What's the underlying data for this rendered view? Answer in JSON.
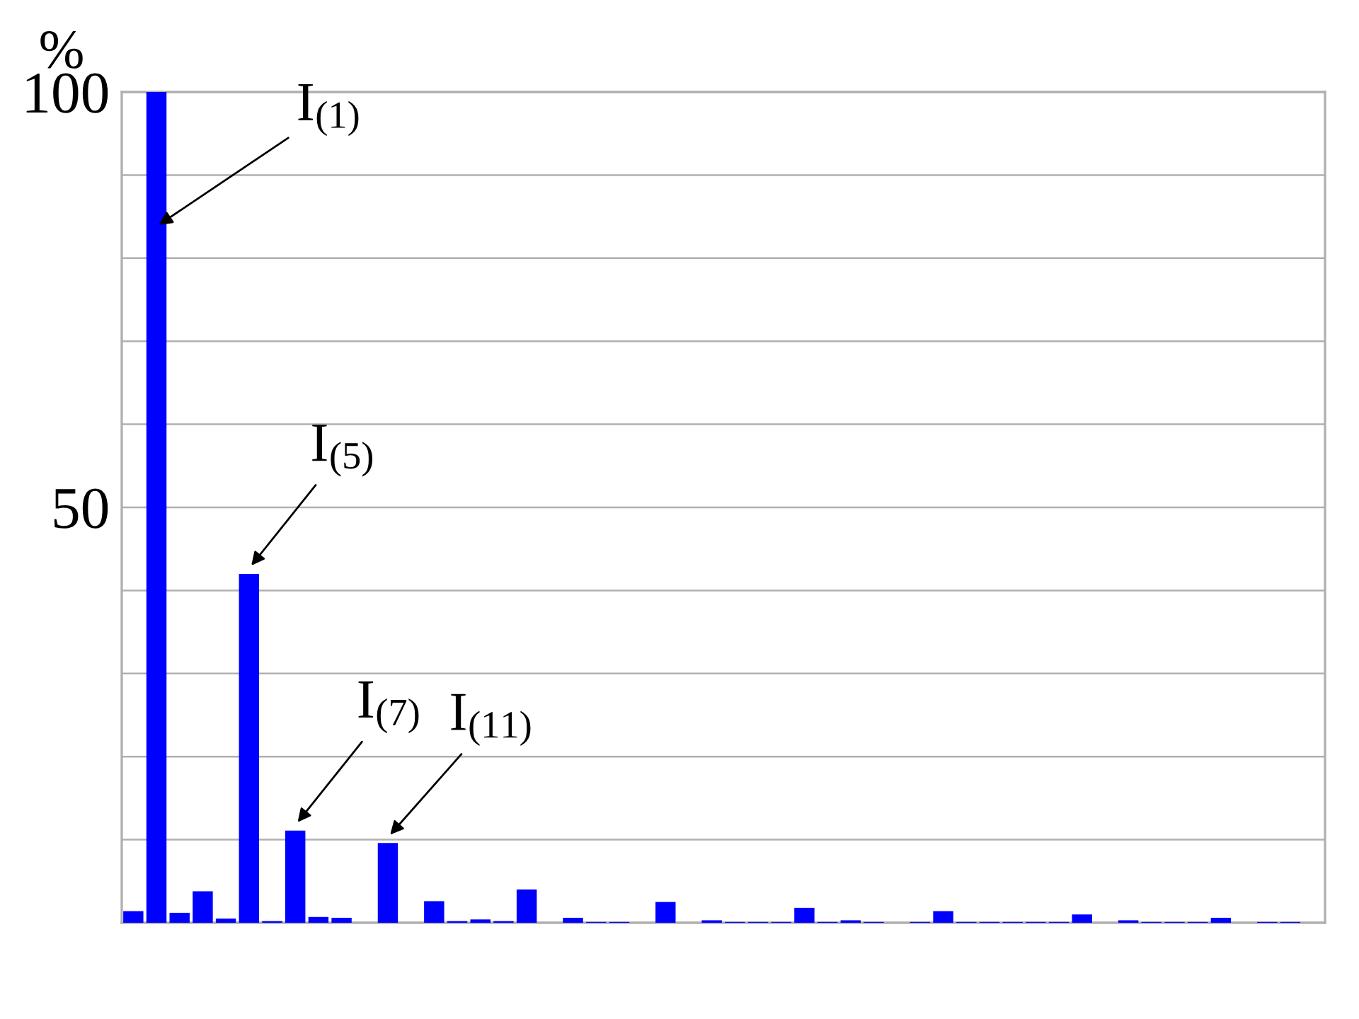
{
  "chart_data": {
    "type": "bar",
    "ylabel": "%",
    "categories": [
      null,
      null,
      null,
      null,
      null,
      null,
      null,
      null,
      null,
      null,
      null,
      null,
      null,
      null,
      null,
      null,
      null,
      null,
      null,
      null,
      null,
      null,
      null,
      null,
      null,
      null,
      null,
      null,
      null,
      null,
      null,
      null,
      null,
      null,
      null,
      null,
      null,
      null,
      null,
      null,
      null,
      null,
      null,
      null,
      null,
      null,
      null,
      null,
      null,
      null,
      null,
      null
    ],
    "values": [
      1.4,
      100,
      1.2,
      3.8,
      0.5,
      42,
      0.2,
      11.1,
      0.7,
      0.6,
      0,
      9.6,
      0,
      2.6,
      0.2,
      0.4,
      0.2,
      4.0,
      0,
      0.6,
      0.1,
      0.1,
      0,
      2.5,
      0,
      0.3,
      0.1,
      0.1,
      0.1,
      1.8,
      0.1,
      0.3,
      0.1,
      0,
      0.1,
      1.4,
      0.1,
      0.1,
      0.1,
      0.1,
      0.1,
      1.0,
      0,
      0.3,
      0.1,
      0.1,
      0.1,
      0.6,
      0,
      0.1,
      0.1,
      0
    ],
    "color": "#0000ff",
    "ylim": [
      0,
      100
    ],
    "yticks": [
      {
        "value": 0,
        "label": null
      },
      {
        "value": 10,
        "label": null
      },
      {
        "value": 20,
        "label": null
      },
      {
        "value": 30,
        "label": null
      },
      {
        "value": 40,
        "label": null
      },
      50,
      {
        "value": 60,
        "label": null
      },
      {
        "value": 70,
        "label": null
      },
      {
        "value": 80,
        "label": null
      },
      {
        "value": 90,
        "label": null
      },
      100
    ],
    "grid": "y",
    "annotations": [
      "I$_{(1)}$",
      "I$_{(5)}$",
      "I$_{(7)}$",
      "I$_{(11)}$"
    ]
  }
}
